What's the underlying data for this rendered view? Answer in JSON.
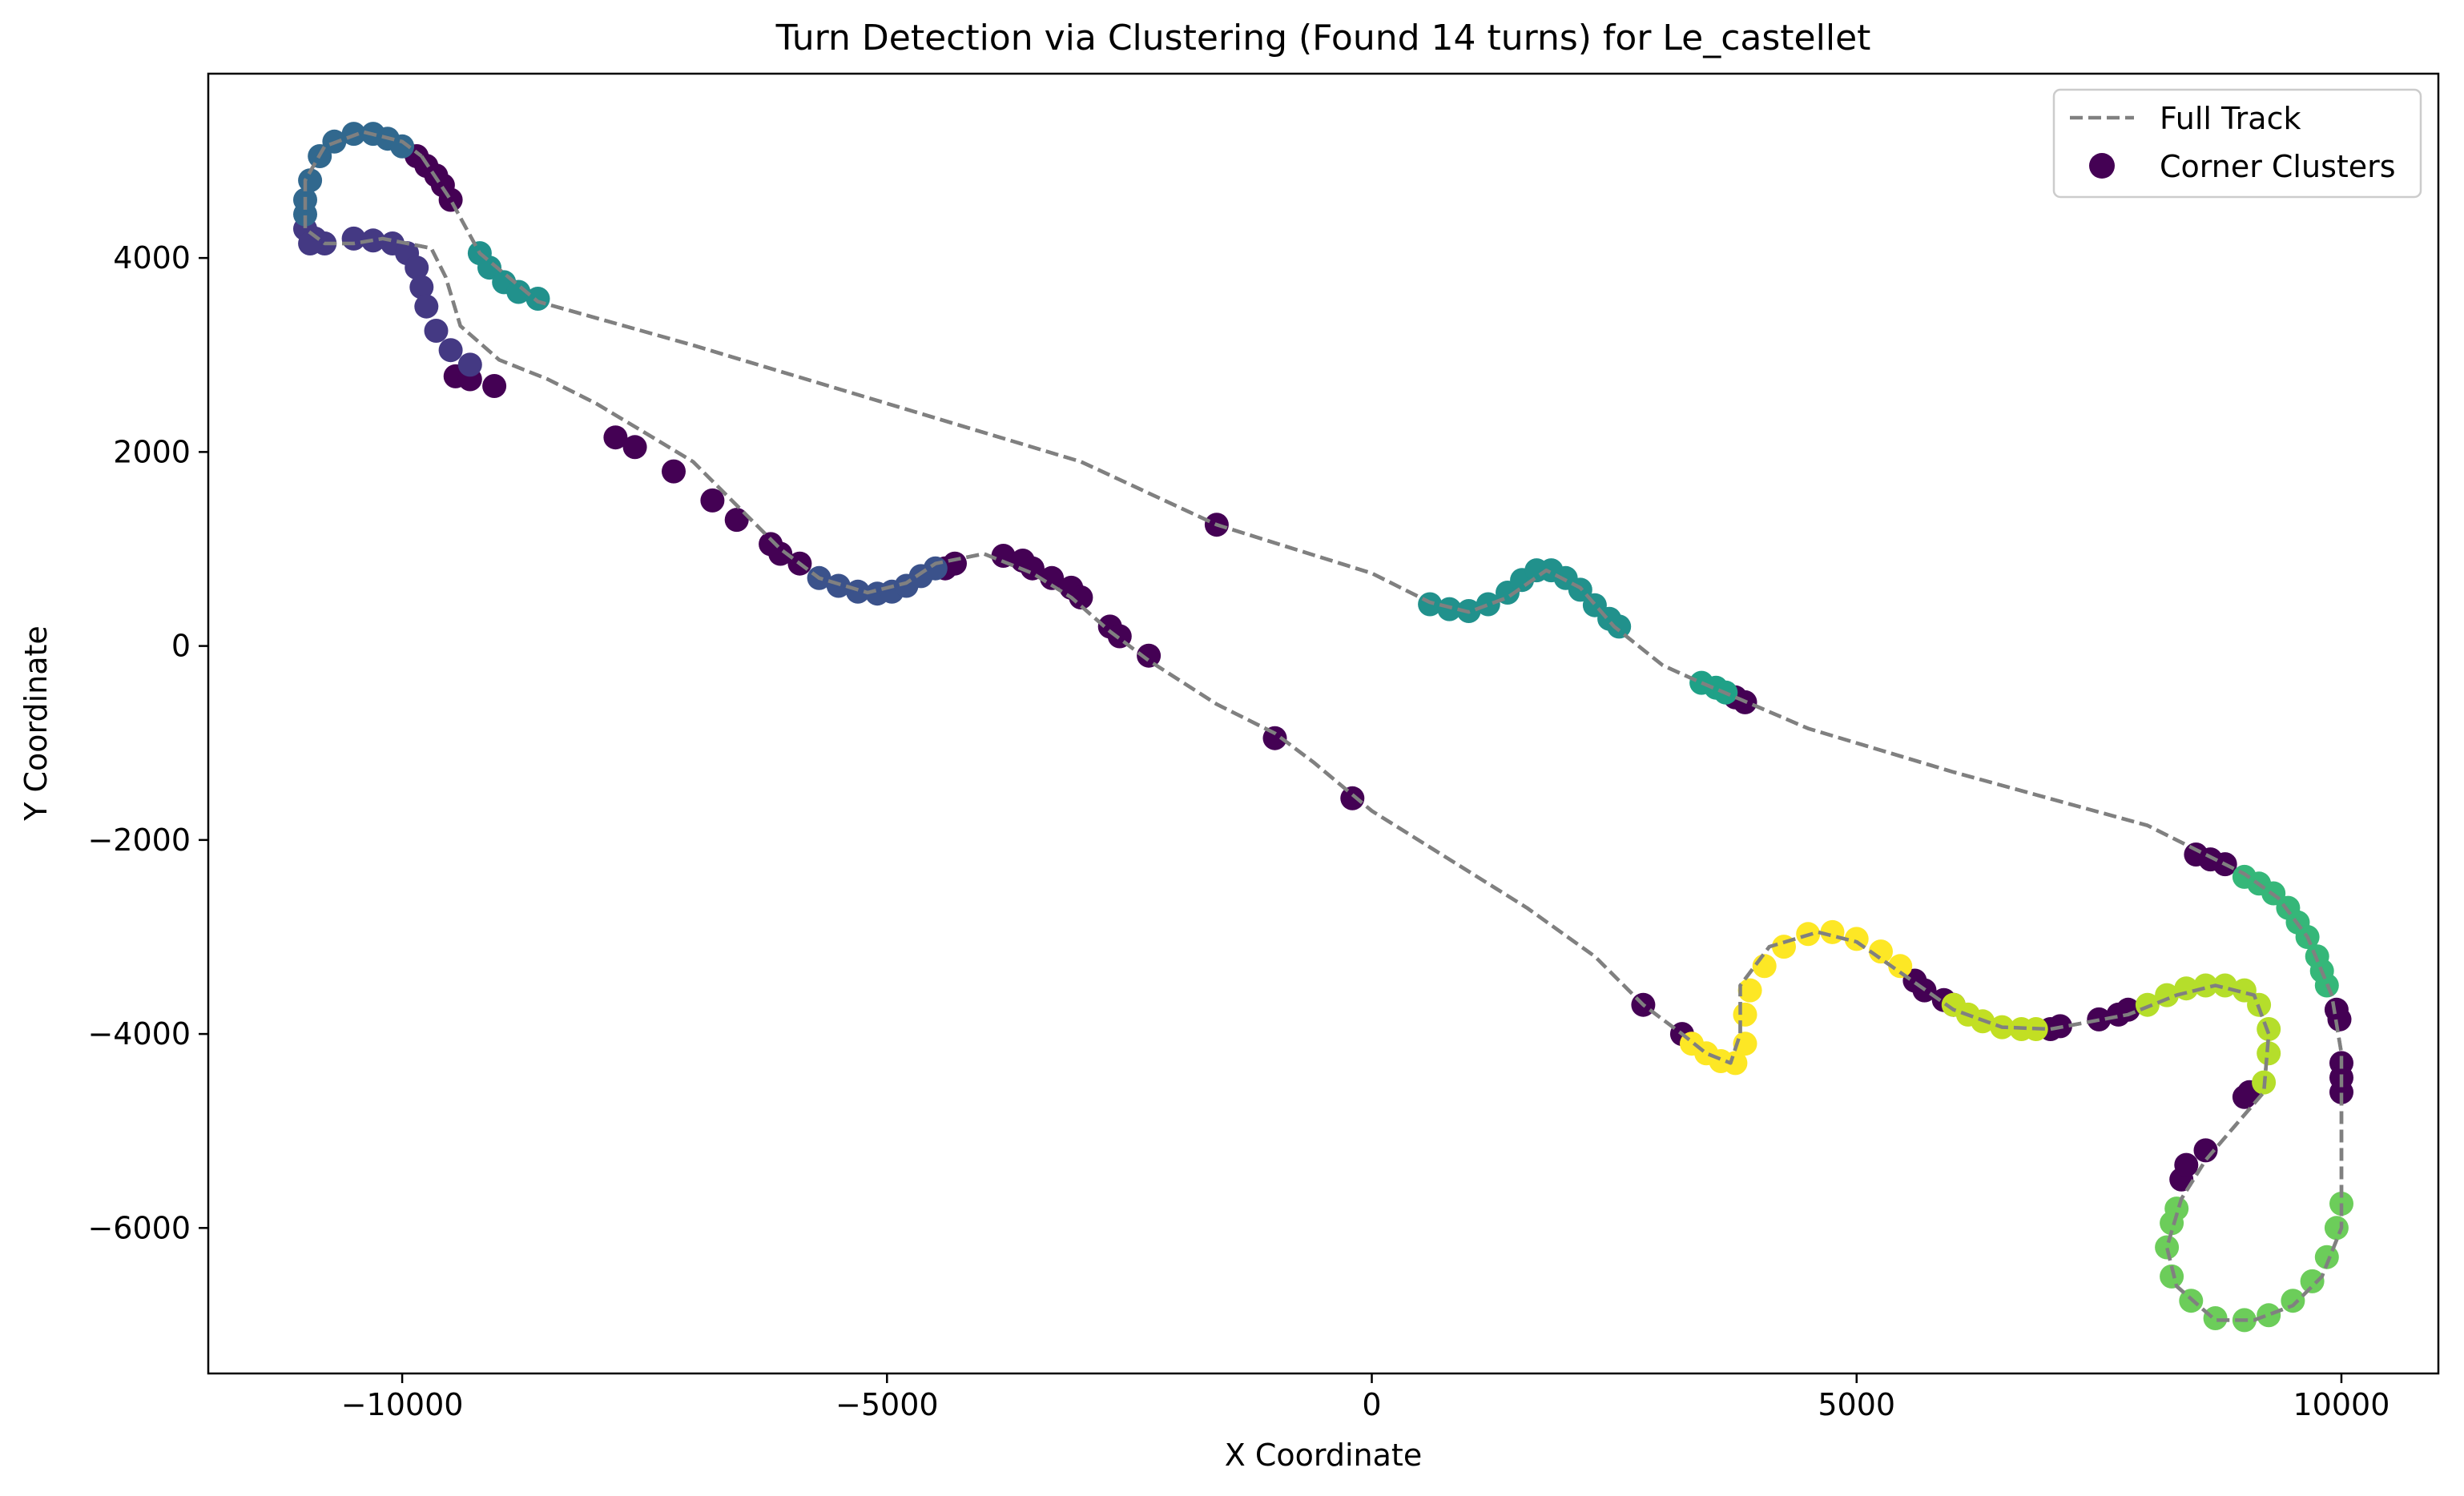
{
  "chart_data": {
    "type": "scatter",
    "title": "Turn Detection via Clustering (Found 14 turns) for Le_castellet",
    "xlabel": "X Coordinate",
    "ylabel": "Y Coordinate",
    "xlim": [
      -12000,
      11000
    ],
    "ylim": [
      -7500,
      5900
    ],
    "x_ticks": [
      -10000,
      -5000,
      0,
      5000,
      10000
    ],
    "x_tick_labels": [
      "−10000",
      "−5000",
      "0",
      "5000",
      "10000"
    ],
    "y_ticks": [
      -6000,
      -4000,
      -2000,
      0,
      2000,
      4000
    ],
    "y_tick_labels": [
      "−6000",
      "−4000",
      "−2000",
      "0",
      "2000",
      "4000"
    ],
    "grid": false,
    "legend_position": "top-right",
    "legend": [
      {
        "label": "Full Track",
        "style": "dashed-line",
        "color": "#808080"
      },
      {
        "label": "Corner Clusters",
        "style": "marker",
        "color": "#440154"
      }
    ],
    "track": [
      [
        -9800,
        5050
      ],
      [
        -9500,
        4600
      ],
      [
        -9200,
        4050
      ],
      [
        -8600,
        3550
      ],
      [
        -7000,
        3100
      ],
      [
        -5000,
        2500
      ],
      [
        -3000,
        1900
      ],
      [
        -1600,
        1250
      ],
      [
        0,
        750
      ],
      [
        600,
        450
      ],
      [
        1000,
        350
      ],
      [
        1400,
        500
      ],
      [
        1800,
        780
      ],
      [
        2150,
        600
      ],
      [
        2500,
        200
      ],
      [
        3000,
        -200
      ],
      [
        3400,
        -380
      ],
      [
        3800,
        -550
      ],
      [
        4500,
        -850
      ],
      [
        6000,
        -1300
      ],
      [
        8000,
        -1850
      ],
      [
        8500,
        -2100
      ],
      [
        9000,
        -2350
      ],
      [
        9350,
        -2600
      ],
      [
        9650,
        -3000
      ],
      [
        9900,
        -3600
      ],
      [
        10000,
        -4200
      ],
      [
        10000,
        -4800
      ],
      [
        10000,
        -5500
      ],
      [
        10000,
        -6000
      ],
      [
        9800,
        -6500
      ],
      [
        9500,
        -6800
      ],
      [
        9100,
        -6950
      ],
      [
        8700,
        -6950
      ],
      [
        8300,
        -6600
      ],
      [
        8200,
        -6200
      ],
      [
        8350,
        -5700
      ],
      [
        8600,
        -5300
      ],
      [
        8900,
        -4950
      ],
      [
        9200,
        -4600
      ],
      [
        9250,
        -4000
      ],
      [
        9100,
        -3600
      ],
      [
        8700,
        -3500
      ],
      [
        8300,
        -3600
      ],
      [
        7800,
        -3800
      ],
      [
        7000,
        -3950
      ],
      [
        6500,
        -3930
      ],
      [
        6000,
        -3750
      ],
      [
        5500,
        -3400
      ],
      [
        5000,
        -3050
      ],
      [
        4600,
        -2950
      ],
      [
        4100,
        -3100
      ],
      [
        3800,
        -3500
      ],
      [
        3800,
        -4000
      ],
      [
        3700,
        -4300
      ],
      [
        3450,
        -4200
      ],
      [
        3200,
        -4000
      ],
      [
        2800,
        -3700
      ],
      [
        2300,
        -3200
      ],
      [
        1600,
        -2700
      ],
      [
        800,
        -2200
      ],
      [
        0,
        -1700
      ],
      [
        -600,
        -1200
      ],
      [
        -1000,
        -900
      ],
      [
        -1600,
        -600
      ],
      [
        -2300,
        -150
      ],
      [
        -2700,
        150
      ],
      [
        -3100,
        500
      ],
      [
        -3500,
        750
      ],
      [
        -4000,
        950
      ],
      [
        -4500,
        850
      ],
      [
        -4800,
        650
      ],
      [
        -5200,
        550
      ],
      [
        -5700,
        700
      ],
      [
        -6100,
        1000
      ],
      [
        -6500,
        1400
      ],
      [
        -7000,
        1900
      ],
      [
        -7500,
        2200
      ],
      [
        -8000,
        2500
      ],
      [
        -8500,
        2750
      ],
      [
        -9000,
        2950
      ],
      [
        -9400,
        3300
      ],
      [
        -9550,
        3800
      ],
      [
        -9700,
        4100
      ],
      [
        -10200,
        4200
      ],
      [
        -10500,
        4150
      ],
      [
        -10800,
        4150
      ],
      [
        -11000,
        4300
      ],
      [
        -11000,
        4800
      ],
      [
        -10800,
        5150
      ],
      [
        -10400,
        5300
      ],
      [
        -10000,
        5200
      ],
      [
        -9800,
        5050
      ]
    ],
    "series": [
      {
        "color": "#440154",
        "points": [
          [
            -9850,
            5050
          ],
          [
            -9750,
            4950
          ],
          [
            -9650,
            4850
          ],
          [
            -9580,
            4750
          ],
          [
            -9500,
            4600
          ],
          [
            -9450,
            2780
          ],
          [
            -9300,
            2750
          ],
          [
            -9050,
            2680
          ],
          [
            -7800,
            2150
          ],
          [
            -7600,
            2050
          ],
          [
            -7200,
            1800
          ],
          [
            -6800,
            1500
          ],
          [
            -6550,
            1300
          ],
          [
            -6200,
            1050
          ],
          [
            -6100,
            950
          ],
          [
            -5900,
            850
          ],
          [
            -4400,
            800
          ],
          [
            -4300,
            850
          ],
          [
            -3800,
            930
          ],
          [
            -3600,
            880
          ],
          [
            -3500,
            800
          ],
          [
            -3300,
            700
          ],
          [
            -3100,
            600
          ],
          [
            -3000,
            500
          ],
          [
            -2700,
            200
          ],
          [
            -2600,
            100
          ],
          [
            -2300,
            -100
          ],
          [
            -1600,
            1250
          ],
          [
            -1000,
            -950
          ],
          [
            -200,
            -1570
          ],
          [
            3850,
            -580
          ],
          [
            3750,
            -530
          ],
          [
            2800,
            -3700
          ],
          [
            3200,
            -4000
          ],
          [
            5600,
            -3450
          ],
          [
            5700,
            -3550
          ],
          [
            5900,
            -3650
          ],
          [
            6000,
            -3700
          ],
          [
            7000,
            -3950
          ],
          [
            7100,
            -3920
          ],
          [
            7500,
            -3850
          ],
          [
            7700,
            -3800
          ],
          [
            7800,
            -3750
          ],
          [
            8500,
            -2150
          ],
          [
            8650,
            -2200
          ],
          [
            8800,
            -2250
          ],
          [
            9000,
            -4650
          ],
          [
            9050,
            -4600
          ],
          [
            8350,
            -5500
          ],
          [
            8400,
            -5350
          ],
          [
            8600,
            -5200
          ],
          [
            9950,
            -3750
          ],
          [
            9980,
            -3850
          ],
          [
            10000,
            -4300
          ],
          [
            10000,
            -4450
          ],
          [
            10000,
            -4600
          ]
        ]
      },
      {
        "color": "#443983",
        "points": [
          [
            -10800,
            4150
          ],
          [
            -10900,
            4200
          ],
          [
            -11000,
            4300
          ],
          [
            -10950,
            4150
          ],
          [
            -10500,
            4200
          ],
          [
            -10300,
            4180
          ],
          [
            -10100,
            4150
          ],
          [
            -9950,
            4050
          ],
          [
            -9850,
            3900
          ],
          [
            -9800,
            3700
          ],
          [
            -9750,
            3500
          ],
          [
            -9650,
            3250
          ],
          [
            -9500,
            3050
          ],
          [
            -9300,
            2900
          ]
        ]
      },
      {
        "color": "#3b528b",
        "points": [
          [
            -5700,
            700
          ],
          [
            -5500,
            620
          ],
          [
            -5300,
            560
          ],
          [
            -5100,
            540
          ],
          [
            -4950,
            560
          ],
          [
            -4800,
            620
          ],
          [
            -4650,
            720
          ],
          [
            -4500,
            800
          ]
        ]
      },
      {
        "color": "#31688e",
        "points": [
          [
            -11000,
            4450
          ],
          [
            -11000,
            4600
          ],
          [
            -10950,
            4800
          ],
          [
            -10850,
            5050
          ],
          [
            -10700,
            5200
          ],
          [
            -10500,
            5280
          ],
          [
            -10300,
            5280
          ],
          [
            -10150,
            5230
          ],
          [
            -10000,
            5150
          ]
        ]
      },
      {
        "color": "#21918c",
        "points": [
          [
            -9200,
            4050
          ],
          [
            -9100,
            3900
          ],
          [
            -8950,
            3750
          ],
          [
            -8800,
            3650
          ],
          [
            -8600,
            3580
          ],
          [
            600,
            430
          ],
          [
            800,
            380
          ],
          [
            1000,
            360
          ],
          [
            1200,
            430
          ],
          [
            1400,
            550
          ],
          [
            1550,
            680
          ],
          [
            1700,
            780
          ],
          [
            1850,
            780
          ],
          [
            2000,
            700
          ],
          [
            2150,
            580
          ],
          [
            2300,
            420
          ],
          [
            2450,
            280
          ],
          [
            2550,
            200
          ]
        ]
      },
      {
        "color": "#1fa187",
        "points": [
          [
            3400,
            -380
          ],
          [
            3550,
            -430
          ],
          [
            3650,
            -480
          ]
        ]
      },
      {
        "color": "#35b779",
        "points": [
          [
            9000,
            -2380
          ],
          [
            9150,
            -2450
          ],
          [
            9300,
            -2550
          ],
          [
            9450,
            -2700
          ],
          [
            9550,
            -2850
          ],
          [
            9650,
            -3000
          ],
          [
            9750,
            -3200
          ],
          [
            9800,
            -3350
          ],
          [
            9850,
            -3500
          ]
        ]
      },
      {
        "color": "#6ccd5a",
        "points": [
          [
            10000,
            -5750
          ],
          [
            9950,
            -6000
          ],
          [
            9850,
            -6300
          ],
          [
            9700,
            -6550
          ],
          [
            9500,
            -6750
          ],
          [
            9250,
            -6900
          ],
          [
            9000,
            -6950
          ],
          [
            8700,
            -6930
          ],
          [
            8450,
            -6750
          ],
          [
            8250,
            -6500
          ],
          [
            8200,
            -6200
          ],
          [
            8250,
            -5950
          ],
          [
            8300,
            -5800
          ]
        ]
      },
      {
        "color": "#b5de2b",
        "points": [
          [
            8000,
            -3700
          ],
          [
            8200,
            -3600
          ],
          [
            8400,
            -3530
          ],
          [
            8600,
            -3500
          ],
          [
            8800,
            -3500
          ],
          [
            9000,
            -3550
          ],
          [
            9150,
            -3700
          ],
          [
            9250,
            -3950
          ],
          [
            9250,
            -4200
          ],
          [
            9200,
            -4500
          ]
        ]
      },
      {
        "color": "#c2df23",
        "points": [
          [
            6000,
            -3700
          ],
          [
            6150,
            -3800
          ],
          [
            6300,
            -3870
          ],
          [
            6500,
            -3930
          ],
          [
            6700,
            -3950
          ],
          [
            6850,
            -3950
          ]
        ]
      },
      {
        "color": "#fde725",
        "points": [
          [
            3300,
            -4100
          ],
          [
            3450,
            -4200
          ],
          [
            3600,
            -4280
          ],
          [
            3750,
            -4300
          ],
          [
            3850,
            -4100
          ],
          [
            3850,
            -3800
          ],
          [
            3900,
            -3550
          ],
          [
            4050,
            -3300
          ],
          [
            4250,
            -3100
          ],
          [
            4500,
            -2970
          ],
          [
            4750,
            -2950
          ],
          [
            5000,
            -3020
          ],
          [
            5250,
            -3150
          ],
          [
            5450,
            -3300
          ]
        ]
      }
    ]
  }
}
